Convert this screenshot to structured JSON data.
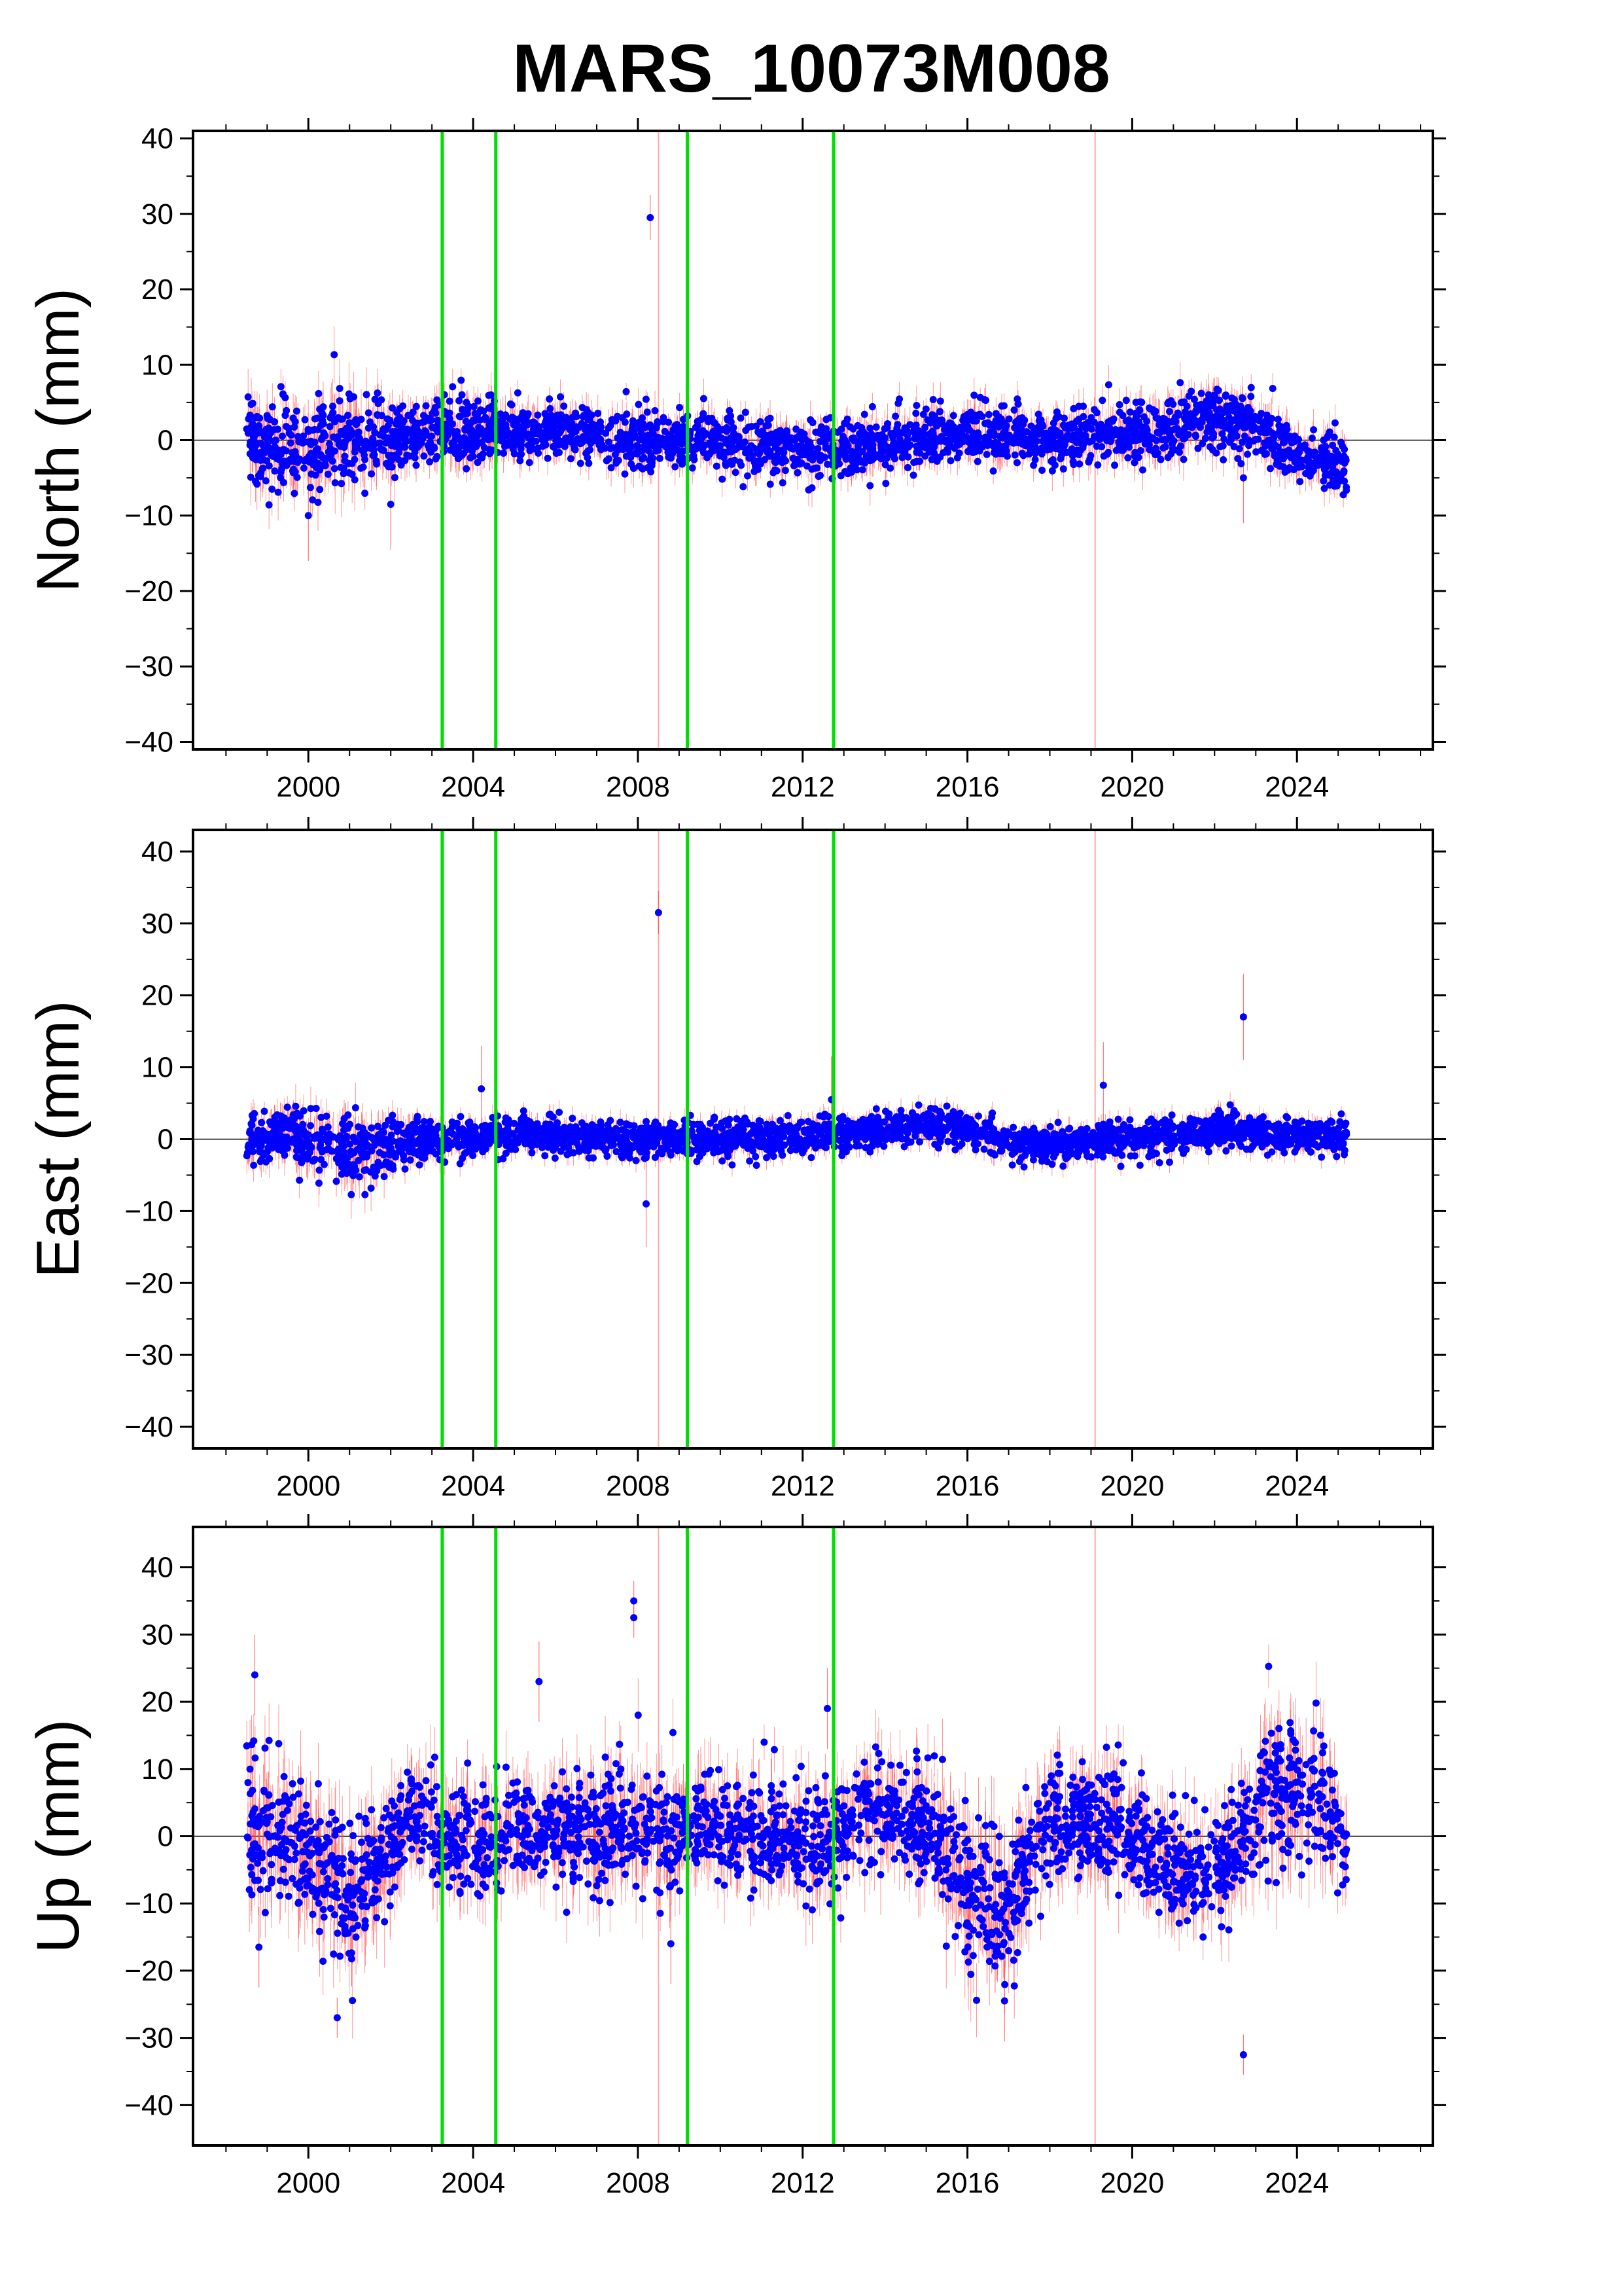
{
  "chart_data": {
    "type": "scatter",
    "title": "MARS_10073M008",
    "x_range": [
      1997.2,
      2027.3
    ],
    "x_ticks": [
      "2000",
      "2004",
      "2008",
      "2012",
      "2016",
      "2020",
      "2024"
    ],
    "data_span": [
      1998.5,
      2025.2
    ],
    "colors": {
      "point": "#0000ff",
      "error_bar": "#ff4040",
      "break_line": "#00e000",
      "event_line": "#ffaaaa",
      "zero_line": "#000000"
    },
    "breaks_green": [
      2003.25,
      2004.55,
      2009.2,
      2012.75
    ],
    "events_light": [
      2008.5,
      2019.1
    ],
    "panels": [
      {
        "ylabel": "North (mm)",
        "ylim": [
          -41,
          41
        ],
        "y_ticks": [
          "40",
          "30",
          "20",
          "10",
          "0",
          "−10",
          "−20",
          "−30",
          "−40"
        ],
        "series": [
          {
            "x": [
              1998.6,
              1999.5,
              2000.5,
              2001.5,
              2002.5,
              2003.5,
              2004.5,
              2006,
              2008,
              2009.5,
              2011,
              2012.5,
              2014,
              2015.5,
              2016.5,
              2018,
              2019.5,
              2021,
              2022,
              2023,
              2024,
              2025.1
            ],
            "y": [
              -1,
              -1,
              -0.5,
              0,
              1,
              1,
              1,
              1,
              0,
              0,
              -1,
              -1,
              -0.5,
              0.5,
              1,
              0,
              0.5,
              2,
              3.5,
              2,
              -2,
              -3
            ],
            "scatter": [
              2.5,
              3,
              3,
              3,
              2,
              2.5,
              2,
              1.8,
              1.8,
              1.8,
              1.8,
              1.8,
              1.8,
              1.8,
              1.8,
              1.8,
              1.8,
              2,
              2,
              2,
              2,
              2
            ]
          }
        ],
        "outliers": [
          [
            2008.3,
            29.5
          ],
          [
            2000,
            -10
          ],
          [
            2022.7,
            -5
          ],
          [
            2002,
            -8.5
          ]
        ]
      },
      {
        "ylabel": "East (mm)",
        "ylim": [
          -43,
          43
        ],
        "y_ticks": [
          "40",
          "30",
          "20",
          "10",
          "0",
          "−10",
          "−20",
          "−30",
          "−40"
        ],
        "series": [
          {
            "x": [
              1998.6,
              1999.5,
              2000.5,
              2001.5,
              2002.5,
              2004,
              2006,
              2008,
              2010,
              2012,
              2013.5,
              2015,
              2016,
              2017,
              2018.5,
              2020,
              2021.5,
              2022.5,
              2023.5,
              2025.1
            ],
            "y": [
              0,
              1,
              -1,
              -1.5,
              -0.5,
              0.5,
              0.5,
              0,
              0,
              0.5,
              1,
              2,
              1.5,
              -0.5,
              -0.5,
              0,
              0.5,
              1.5,
              0.5,
              0.5
            ],
            "scatter": [
              2,
              2,
              2.5,
              2.5,
              1.5,
              1.2,
              1.2,
              1.2,
              1.2,
              1.2,
              1.2,
              1.2,
              1.2,
              1.2,
              1.2,
              1.2,
              1.2,
              1.3,
              1.2,
              1.2
            ]
          }
        ],
        "outliers": [
          [
            2008.5,
            31.5
          ],
          [
            2022.7,
            17
          ],
          [
            2019.3,
            7.5
          ],
          [
            2008.2,
            -9
          ],
          [
            2004.2,
            7
          ],
          [
            2012.7,
            5.5
          ]
        ]
      },
      {
        "ylabel": "Up (mm)",
        "ylim": [
          -46,
          46
        ],
        "y_ticks": [
          "40",
          "30",
          "20",
          "10",
          "0",
          "−10",
          "−20",
          "−30",
          "−40"
        ],
        "series": [
          {
            "x": [
              1998.6,
              1999.5,
              2000.5,
              2001,
              2001.5,
              2002.5,
              2003.5,
              2004.5,
              2006,
              2008,
              2009.5,
              2011,
              2012.5,
              2013.5,
              2015,
              2016,
              2016.8,
              2018,
              2019.5,
              2020.5,
              2021.5,
              2022.5,
              2023.3,
              2024,
              2024.7,
              2025.1
            ],
            "y": [
              3,
              0,
              -5,
              -10,
              -5,
              2,
              0,
              0,
              1,
              1,
              1,
              0,
              -1,
              4,
              2,
              -8,
              -12,
              2,
              2,
              -2,
              -6,
              -3,
              8,
              6,
              6,
              0
            ],
            "scatter": [
              5,
              5,
              5,
              5,
              5,
              4,
              4,
              4,
              4,
              4.5,
              4,
              4,
              4,
              4,
              4,
              5,
              5,
              4,
              4,
              4,
              4,
              4,
              5,
              5,
              5,
              4
            ]
          }
        ],
        "outliers": [
          [
            1998.7,
            24
          ],
          [
            2007.9,
            35
          ],
          [
            2007.9,
            32.5
          ],
          [
            2022.7,
            -32.5
          ],
          [
            2000.7,
            -27
          ],
          [
            2005.6,
            23
          ],
          [
            2008.8,
            -16
          ],
          [
            1998.8,
            -16.5
          ],
          [
            2012.6,
            19
          ],
          [
            2016.9,
            -24.5
          ]
        ]
      }
    ]
  }
}
